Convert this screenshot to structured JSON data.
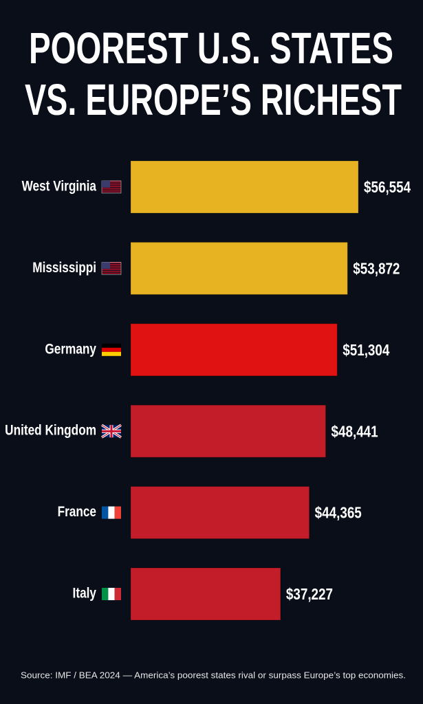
{
  "chart_data": {
    "type": "bar",
    "orientation": "horizontal",
    "title": [
      "POOREST U.S. STATES",
      "VS. EUROPE’S RICHEST"
    ],
    "categories": [
      "West Virginia",
      "Mississippi",
      "Germany",
      "United Kingdom",
      "France",
      "Italy"
    ],
    "values": [
      56554,
      53872,
      51304,
      48441,
      44365,
      37227
    ],
    "value_labels": [
      "$56,554",
      "$53,872",
      "$51,304",
      "$48,441",
      "$44,365",
      "$37,227"
    ],
    "colors": [
      "#e8b322",
      "#e8b322",
      "#e01212",
      "#c21d28",
      "#c21d28",
      "#c21d28"
    ],
    "source": "Source: IMF / BEA 2024 — America’s poorest states rival or surpass Europe’s top economies."
  }
}
